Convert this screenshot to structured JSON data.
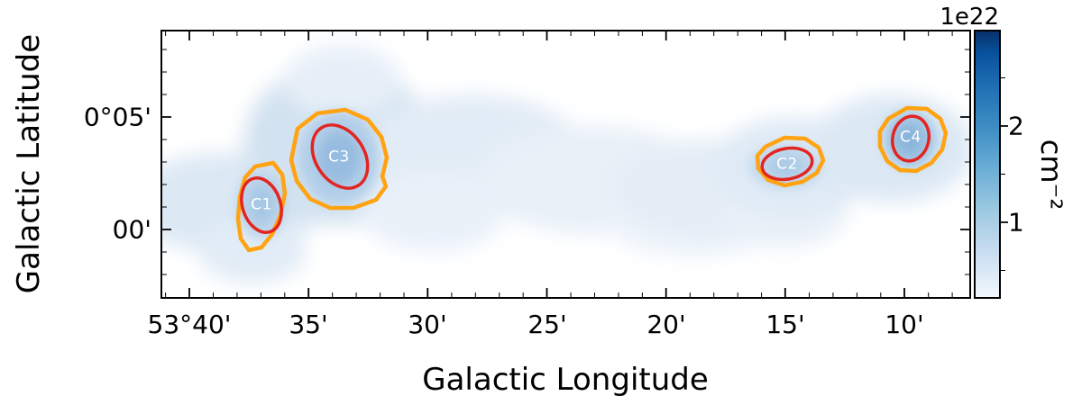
{
  "chart_data": {
    "type": "heatmap",
    "title": "",
    "xlabel": "Galactic Longitude",
    "ylabel": "Galactic Latitude",
    "x_ticks": [
      "53°40'",
      "35'",
      "30'",
      "25'",
      "20'",
      "15'",
      "10'"
    ],
    "y_ticks": [
      "0°05'",
      "00'"
    ],
    "axis_layout": {
      "x_major_tick_step_arcmin": 5,
      "x_direction": "longitude decreases to the right",
      "tick_direction": "in",
      "grid": false
    },
    "colormap": "Blues",
    "colorbar": {
      "offset": "1e22",
      "label": "cm⁻²",
      "ticks": [
        "2",
        "1"
      ],
      "approx_value_range_1e22": [
        0,
        2.8
      ],
      "position": "right"
    },
    "overlays": {
      "contour_color": "#ffa312",
      "ellipse_color": "#e22520",
      "clump_label_color": "#ffffff"
    },
    "clumps": [
      {
        "label": "C1",
        "approx_longitude": "53°37.5'",
        "approx_latitude": "0°01.5'"
      },
      {
        "label": "C3",
        "approx_longitude": "53°34.5'",
        "approx_latitude": "0°03.5'"
      },
      {
        "label": "C2",
        "approx_longitude": "53°14'",
        "approx_latitude": "0°03'"
      },
      {
        "label": "C4",
        "approx_longitude": "53°09'",
        "approx_latitude": "0°04'"
      }
    ]
  }
}
